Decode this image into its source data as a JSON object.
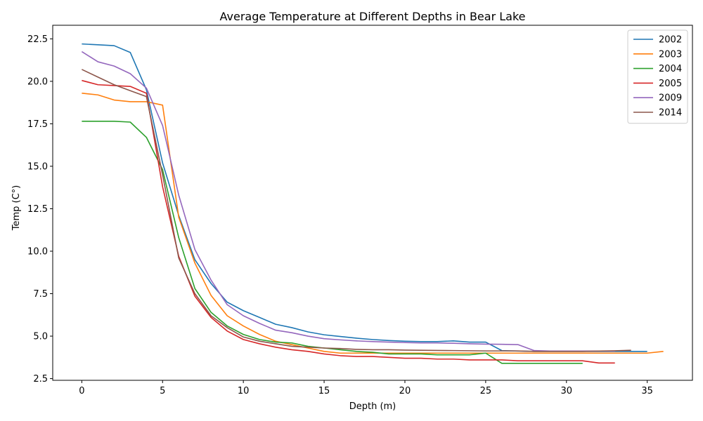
{
  "chart_data": {
    "type": "line",
    "title": "Average Temperature at Different Depths in Bear Lake",
    "xlabel": "Depth (m)",
    "ylabel": "Temp (C°)",
    "xlim": [
      -1.8,
      37.8
    ],
    "ylim": [
      2.4,
      23.3
    ],
    "xticks": [
      0,
      5,
      10,
      15,
      20,
      25,
      30,
      35
    ],
    "xtick_labels": [
      "0",
      "5",
      "10",
      "15",
      "20",
      "25",
      "30",
      "35"
    ],
    "yticks": [
      2.5,
      5.0,
      7.5,
      10.0,
      12.5,
      15.0,
      17.5,
      20.0,
      22.5
    ],
    "ytick_labels": [
      "2.5",
      "5.0",
      "7.5",
      "10.0",
      "12.5",
      "15.0",
      "17.5",
      "20.0",
      "22.5"
    ],
    "grid": false,
    "legend_position": "top-right",
    "series": [
      {
        "name": "2002",
        "color": "#1f77b4",
        "x": [
          0,
          1,
          2,
          3,
          4,
          5,
          6,
          7,
          8,
          9,
          10,
          11,
          12,
          13,
          14,
          15,
          16,
          17,
          18,
          19,
          20,
          21,
          22,
          23,
          24,
          25,
          26,
          27,
          28,
          29,
          30,
          31,
          32,
          33,
          34,
          35
        ],
        "y": [
          22.2,
          22.15,
          22.1,
          21.7,
          19.5,
          15.2,
          12.1,
          9.5,
          8.1,
          7.0,
          6.5,
          6.1,
          5.7,
          5.5,
          5.25,
          5.08,
          4.98,
          4.88,
          4.8,
          4.74,
          4.7,
          4.68,
          4.68,
          4.72,
          4.65,
          4.65,
          4.15,
          4.12,
          4.1,
          4.1,
          4.1,
          4.1,
          4.1,
          4.1,
          4.1,
          4.1
        ]
      },
      {
        "name": "2003",
        "color": "#ff7f0e",
        "x": [
          0,
          1,
          2,
          3,
          4,
          5,
          6,
          7,
          8,
          9,
          10,
          11,
          12,
          13,
          14,
          15,
          16,
          17,
          18,
          19,
          20,
          21,
          22,
          23,
          24,
          25,
          26,
          27,
          28,
          29,
          30,
          31,
          32,
          33,
          34,
          35,
          36
        ],
        "y": [
          19.3,
          19.2,
          18.9,
          18.8,
          18.8,
          18.6,
          12.0,
          9.3,
          7.4,
          6.2,
          5.6,
          5.1,
          4.7,
          4.5,
          4.3,
          4.1,
          4.0,
          4.0,
          4.0,
          4.0,
          4.0,
          4.0,
          4.0,
          4.0,
          4.0,
          4.0,
          4.0,
          4.0,
          4.0,
          4.0,
          4.0,
          4.0,
          4.0,
          4.0,
          4.0,
          4.0,
          4.1
        ]
      },
      {
        "name": "2004",
        "color": "#2ca02c",
        "x": [
          0,
          1,
          2,
          3,
          4,
          5,
          6,
          7,
          8,
          9,
          10,
          11,
          12,
          13,
          14,
          15,
          16,
          17,
          18,
          19,
          20,
          21,
          22,
          23,
          24,
          25,
          26,
          27,
          28,
          29,
          30,
          31
        ],
        "y": [
          17.65,
          17.65,
          17.65,
          17.6,
          16.7,
          14.8,
          10.8,
          7.8,
          6.4,
          5.6,
          5.1,
          4.8,
          4.65,
          4.6,
          4.4,
          4.3,
          4.2,
          4.1,
          4.05,
          3.95,
          3.95,
          3.95,
          3.9,
          3.9,
          3.9,
          4.0,
          3.4,
          3.4,
          3.4,
          3.4,
          3.4,
          3.4
        ]
      },
      {
        "name": "2005",
        "color": "#d62728",
        "x": [
          0,
          1,
          2,
          3,
          4,
          5,
          6,
          7,
          8,
          9,
          10,
          11,
          12,
          13,
          14,
          15,
          16,
          17,
          18,
          19,
          20,
          21,
          22,
          23,
          24,
          25,
          26,
          27,
          28,
          29,
          30,
          31,
          32,
          33
        ],
        "y": [
          20.05,
          19.8,
          19.75,
          19.7,
          19.3,
          13.8,
          9.7,
          7.35,
          6.1,
          5.3,
          4.8,
          4.55,
          4.35,
          4.2,
          4.1,
          3.95,
          3.85,
          3.8,
          3.8,
          3.75,
          3.7,
          3.7,
          3.65,
          3.65,
          3.6,
          3.6,
          3.6,
          3.55,
          3.55,
          3.55,
          3.55,
          3.55,
          3.42,
          3.42
        ]
      },
      {
        "name": "2009",
        "color": "#9467bd",
        "x": [
          0,
          1,
          2,
          3,
          4,
          5,
          6,
          7,
          8,
          9,
          10,
          11,
          12,
          13,
          14,
          15,
          16,
          17,
          18,
          19,
          20,
          21,
          22,
          23,
          24,
          25,
          26,
          27,
          28,
          29,
          30,
          31,
          32,
          33
        ],
        "y": [
          21.75,
          21.15,
          20.9,
          20.45,
          19.6,
          17.4,
          13.3,
          10.1,
          8.3,
          6.85,
          6.2,
          5.75,
          5.35,
          5.2,
          5.0,
          4.85,
          4.78,
          4.72,
          4.68,
          4.65,
          4.62,
          4.6,
          4.6,
          4.58,
          4.55,
          4.53,
          4.52,
          4.5,
          4.15,
          4.12,
          4.12,
          4.12,
          4.12,
          4.12
        ]
      },
      {
        "name": "2014",
        "color": "#8c564b",
        "x": [
          0,
          1,
          2,
          3,
          4,
          5,
          6,
          7,
          8,
          9,
          10,
          11,
          12,
          13,
          14,
          15,
          16,
          17,
          18,
          19,
          20,
          21,
          22,
          23,
          24,
          25,
          26,
          27,
          28,
          29,
          30,
          31,
          32,
          33,
          34
        ],
        "y": [
          20.7,
          20.25,
          19.8,
          19.45,
          19.1,
          14.5,
          9.6,
          7.5,
          6.2,
          5.5,
          4.95,
          4.7,
          4.55,
          4.4,
          4.35,
          4.3,
          4.27,
          4.22,
          4.2,
          4.2,
          4.18,
          4.17,
          4.16,
          4.15,
          4.14,
          4.13,
          4.13,
          4.13,
          4.1,
          4.1,
          4.1,
          4.1,
          4.12,
          4.14,
          4.17
        ]
      }
    ]
  }
}
